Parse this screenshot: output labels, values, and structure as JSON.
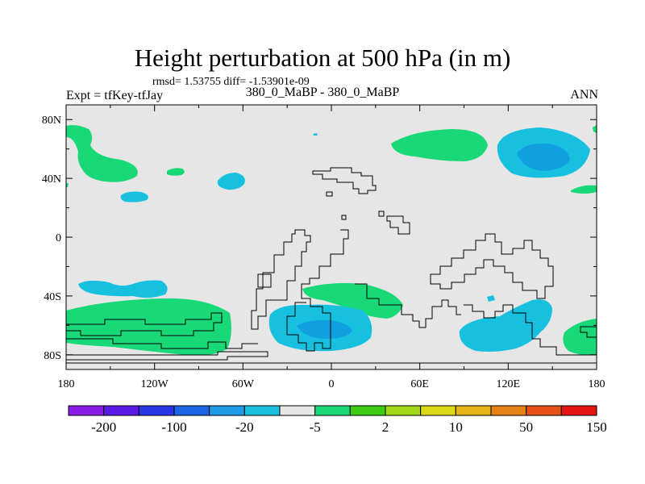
{
  "title": "Height perturbation at 500 hPa (in m)",
  "stats": "rmsd= 1.53755 diff= -1.53901e-09",
  "left_label": "Expt = tfKey-tfJay",
  "center_label": "380_0_MaBP - 380_0_MaBP",
  "right_label": "ANN",
  "colors": {
    "background_fill": "#e6e6e6",
    "light_green": "#18d878",
    "light_blue": "#18c0e0",
    "medium_blue": "#10a0e0",
    "coastline": "#000000"
  },
  "map_data": {
    "type": "filled-contour-map",
    "x_ticks": [
      "180",
      "120W",
      "60W",
      "0",
      "60E",
      "120E",
      "180"
    ],
    "y_ticks": [
      "80N",
      "40N",
      "0",
      "40S",
      "80S"
    ],
    "lon_range": [
      -180,
      180
    ],
    "lat_range": [
      -90,
      90
    ]
  },
  "colorbar": {
    "colors": [
      "#8c1ae6",
      "#5a1ae6",
      "#2a36e6",
      "#1e64e6",
      "#1e9ce6",
      "#18c0e0",
      "#e6e6e6",
      "#18d878",
      "#3ccc14",
      "#a0d814",
      "#d8d814",
      "#e6b414",
      "#e68214",
      "#e65014",
      "#e61414"
    ],
    "labels": [
      "-200",
      "-100",
      "-20",
      "-5",
      "2",
      "10",
      "50",
      "150"
    ]
  }
}
